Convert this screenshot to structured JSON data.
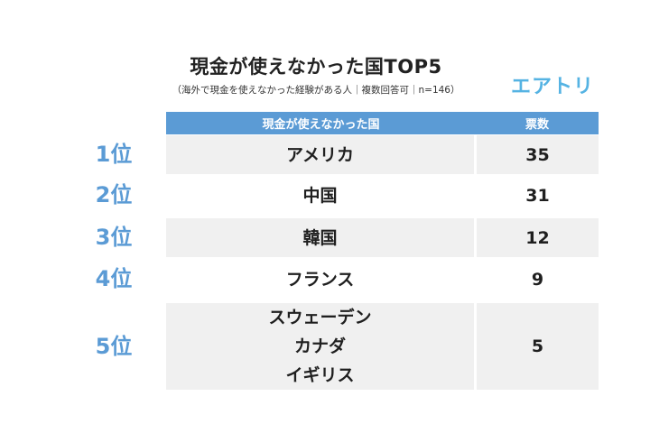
{
  "title": "現金が使えなかった国TOP5",
  "subtitle": "（海外で現金を使えなかった経験がある人｜複数回答可｜n=146）",
  "logo_text": "エアトリ",
  "colors": {
    "accent": "#5b9bd5",
    "logo": "#55b3e3",
    "row_shade": "#f0f0f0"
  },
  "chart_data": {
    "type": "table",
    "title": "現金が使えなかった国TOP5",
    "subtitle": "（海外で現金を使えなかった経験がある人｜複数回答可｜n=146）",
    "columns": [
      "現金が使えなかった国",
      "票数"
    ],
    "rows": [
      {
        "rank": "1位",
        "countries": [
          "アメリカ"
        ],
        "votes": 35
      },
      {
        "rank": "2位",
        "countries": [
          "中国"
        ],
        "votes": 31
      },
      {
        "rank": "3位",
        "countries": [
          "韓国"
        ],
        "votes": 12
      },
      {
        "rank": "4位",
        "countries": [
          "フランス"
        ],
        "votes": 9
      },
      {
        "rank": "5位",
        "countries": [
          "スウェーデン",
          "カナダ",
          "イギリス"
        ],
        "votes": 5
      }
    ]
  }
}
